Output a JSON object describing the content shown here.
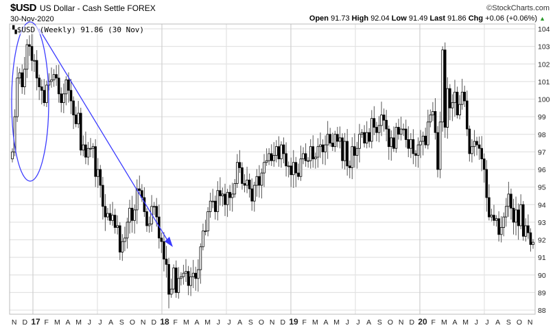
{
  "header": {
    "symbol": "$USD",
    "name": "US Dollar - Cash Settle FOREX",
    "date": "30-Nov-2020",
    "copyright": "©StockCharts.com",
    "open_label": "Open",
    "open": "91.73",
    "high_label": "High",
    "high": "92.04",
    "low_label": "Low",
    "low": "91.49",
    "last_label": "Last",
    "last": "91.86",
    "chg_label": "Chg",
    "chg": "+0.06 (+0.06%)",
    "chg_direction_icon": "triangle-up-icon"
  },
  "legend": {
    "icon": "price-legend-icon",
    "text": "$USD (Weekly) 91.86 (30 Nov)"
  },
  "colors": {
    "annotation": "#3a3aff",
    "up_body": "#ffffff",
    "down_body": "#000000",
    "wick": "#555555",
    "grid": "#e3e3e3",
    "change_up": "#2a9a2a"
  },
  "chart_data": {
    "type": "candlestick",
    "period": "Weekly",
    "ylim": [
      88,
      104
    ],
    "y_ticks": [
      "88",
      "89",
      "90",
      "91",
      "92",
      "93",
      "94",
      "95",
      "96",
      "97",
      "98",
      "99",
      "100",
      "101",
      "102",
      "103",
      "104"
    ],
    "x_ticks": [
      "N",
      "D",
      "17",
      "F",
      "M",
      "A",
      "M",
      "J",
      "J",
      "A",
      "S",
      "O",
      "N",
      "D",
      "18",
      "F",
      "M",
      "A",
      "M",
      "J",
      "J",
      "A",
      "S",
      "O",
      "N",
      "D",
      "19",
      "F",
      "M",
      "A",
      "M",
      "J",
      "J",
      "A",
      "S",
      "O",
      "N",
      "D",
      "20",
      "F",
      "M",
      "A",
      "M",
      "J",
      "J",
      "A",
      "S",
      "O",
      "N"
    ],
    "grid": true,
    "close": [
      97.0,
      99.0,
      101.2,
      101.5,
      100.7,
      101.7,
      103.1,
      103.0,
      102.2,
      102.2,
      101.2,
      100.7,
      100.5,
      99.8,
      100.8,
      101.0,
      101.1,
      101.4,
      101.2,
      100.3,
      99.8,
      100.3,
      101.1,
      100.5,
      99.9,
      99.1,
      98.6,
      99.2,
      97.1,
      97.4,
      96.7,
      97.2,
      97.2,
      97.3,
      95.6,
      96.0,
      95.1,
      93.9,
      93.3,
      93.5,
      93.1,
      93.4,
      92.7,
      92.8,
      91.3,
      91.9,
      92.1,
      93.0,
      93.8,
      93.1,
      93.7,
      94.9,
      94.8,
      94.4,
      93.6,
      92.8,
      92.9,
      93.9,
      93.9,
      93.3,
      92.1,
      91.9,
      90.9,
      90.6,
      88.9,
      89.2,
      90.4,
      89.0,
      89.8,
      89.9,
      90.1,
      90.2,
      89.4,
      89.9,
      90.1,
      89.8,
      90.3,
      91.6,
      92.5,
      92.5,
      93.6,
      94.2,
      94.2,
      93.6,
      94.8,
      94.5,
      94.6,
      94.0,
      94.7,
      94.4,
      94.6,
      95.2,
      96.4,
      96.1,
      95.2,
      95.1,
      95.4,
      94.9,
      94.2,
      95.1,
      95.6,
      95.1,
      95.8,
      96.4,
      96.5,
      96.9,
      96.5,
      96.8,
      97.3,
      96.6,
      97.4,
      96.9,
      96.2,
      96.2,
      95.7,
      96.4,
      95.8,
      95.6,
      96.6,
      96.9,
      96.5,
      96.5,
      97.3,
      96.6,
      96.7,
      97.3,
      97.4,
      97.0,
      97.4,
      98.0,
      97.5,
      97.3,
      98.0,
      97.6,
      97.8,
      96.5,
      97.6,
      96.2,
      96.1,
      97.3,
      96.8,
      97.2,
      98.0,
      98.1,
      97.5,
      98.1,
      97.6,
      98.9,
      98.4,
      98.1,
      98.5,
      99.1,
      98.8,
      98.3,
      97.3,
      97.8,
      97.2,
      98.4,
      98.0,
      98.3,
      98.3,
      97.7,
      97.2,
      97.7,
      96.9,
      96.8,
      97.4,
      97.6,
      97.9,
      97.4,
      98.7,
      99.1,
      99.3,
      98.1,
      96.0,
      98.7,
      102.8,
      98.4,
      100.6,
      99.5,
      99.8,
      100.4,
      99.1,
      99.7,
      100.4,
      99.9,
      98.3,
      96.9,
      97.3,
      97.6,
      97.4,
      97.2,
      96.6,
      96.0,
      94.4,
      93.3,
      93.4,
      93.1,
      93.2,
      92.3,
      92.7,
      93.3,
      93.9,
      94.6,
      93.8,
      93.0,
      93.7,
      92.8,
      94.0,
      92.2,
      92.8,
      92.4,
      91.73,
      91.86
    ],
    "annotations": [
      {
        "type": "ellipse",
        "note": "circled top"
      },
      {
        "type": "arrow",
        "note": "downtrend line"
      }
    ]
  }
}
